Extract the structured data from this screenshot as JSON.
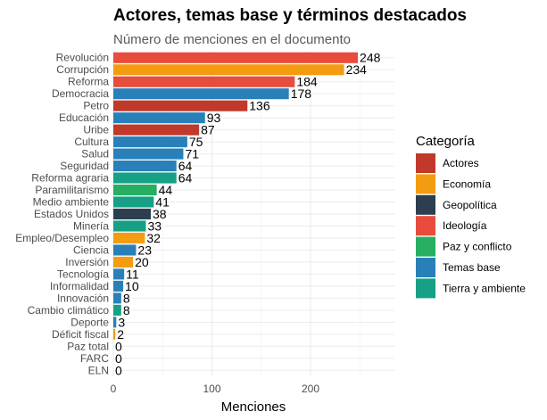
{
  "chart_data": {
    "type": "bar",
    "orientation": "horizontal",
    "title": "Actores, temas base y términos destacados",
    "subtitle": "Número de menciones en el documento",
    "xlabel": "Menciones",
    "ylabel": "",
    "xlim": [
      0,
      285
    ],
    "xticks": [
      0,
      100,
      200
    ],
    "grid": true,
    "legend": {
      "title": "Categoría",
      "position": "right",
      "entries": [
        {
          "name": "Actores",
          "color": "#c0392b"
        },
        {
          "name": "Economía",
          "color": "#f39c12"
        },
        {
          "name": "Geopolítica",
          "color": "#2c3e50"
        },
        {
          "name": "Ideología",
          "color": "#e74c3c"
        },
        {
          "name": "Paz y conflicto",
          "color": "#27ae60"
        },
        {
          "name": "Temas base",
          "color": "#2980b9"
        },
        {
          "name": "Tierra y ambiente",
          "color": "#16a085"
        }
      ]
    },
    "bars": [
      {
        "label": "Revolución",
        "value": 248,
        "category": "Ideología"
      },
      {
        "label": "Corrupción",
        "value": 234,
        "category": "Economía"
      },
      {
        "label": "Reforma",
        "value": 184,
        "category": "Ideología"
      },
      {
        "label": "Democracia",
        "value": 178,
        "category": "Temas base"
      },
      {
        "label": "Petro",
        "value": 136,
        "category": "Actores"
      },
      {
        "label": "Educación",
        "value": 93,
        "category": "Temas base"
      },
      {
        "label": "Uribe",
        "value": 87,
        "category": "Actores"
      },
      {
        "label": "Cultura",
        "value": 75,
        "category": "Temas base"
      },
      {
        "label": "Salud",
        "value": 71,
        "category": "Temas base"
      },
      {
        "label": "Seguridad",
        "value": 64,
        "category": "Temas base"
      },
      {
        "label": "Reforma agraria",
        "value": 64,
        "category": "Tierra y ambiente"
      },
      {
        "label": "Paramilitarismo",
        "value": 44,
        "category": "Paz y conflicto"
      },
      {
        "label": "Medio ambiente",
        "value": 41,
        "category": "Tierra y ambiente"
      },
      {
        "label": "Estados Unidos",
        "value": 38,
        "category": "Geopolítica"
      },
      {
        "label": "Minería",
        "value": 33,
        "category": "Tierra y ambiente"
      },
      {
        "label": "Empleo/Desempleo",
        "value": 32,
        "category": "Economía"
      },
      {
        "label": "Ciencia",
        "value": 23,
        "category": "Temas base"
      },
      {
        "label": "Inversión",
        "value": 20,
        "category": "Economía"
      },
      {
        "label": "Tecnología",
        "value": 11,
        "category": "Temas base"
      },
      {
        "label": "Informalidad",
        "value": 10,
        "category": "Temas base"
      },
      {
        "label": "Innovación",
        "value": 8,
        "category": "Temas base"
      },
      {
        "label": "Cambio climático",
        "value": 8,
        "category": "Tierra y ambiente"
      },
      {
        "label": "Deporte",
        "value": 3,
        "category": "Temas base"
      },
      {
        "label": "Déficit fiscal",
        "value": 2,
        "category": "Economía"
      },
      {
        "label": "Paz total",
        "value": 0,
        "category": "Paz y conflicto"
      },
      {
        "label": "FARC",
        "value": 0,
        "category": "Paz y conflicto"
      },
      {
        "label": "ELN",
        "value": 0,
        "category": "Paz y conflicto"
      }
    ]
  }
}
